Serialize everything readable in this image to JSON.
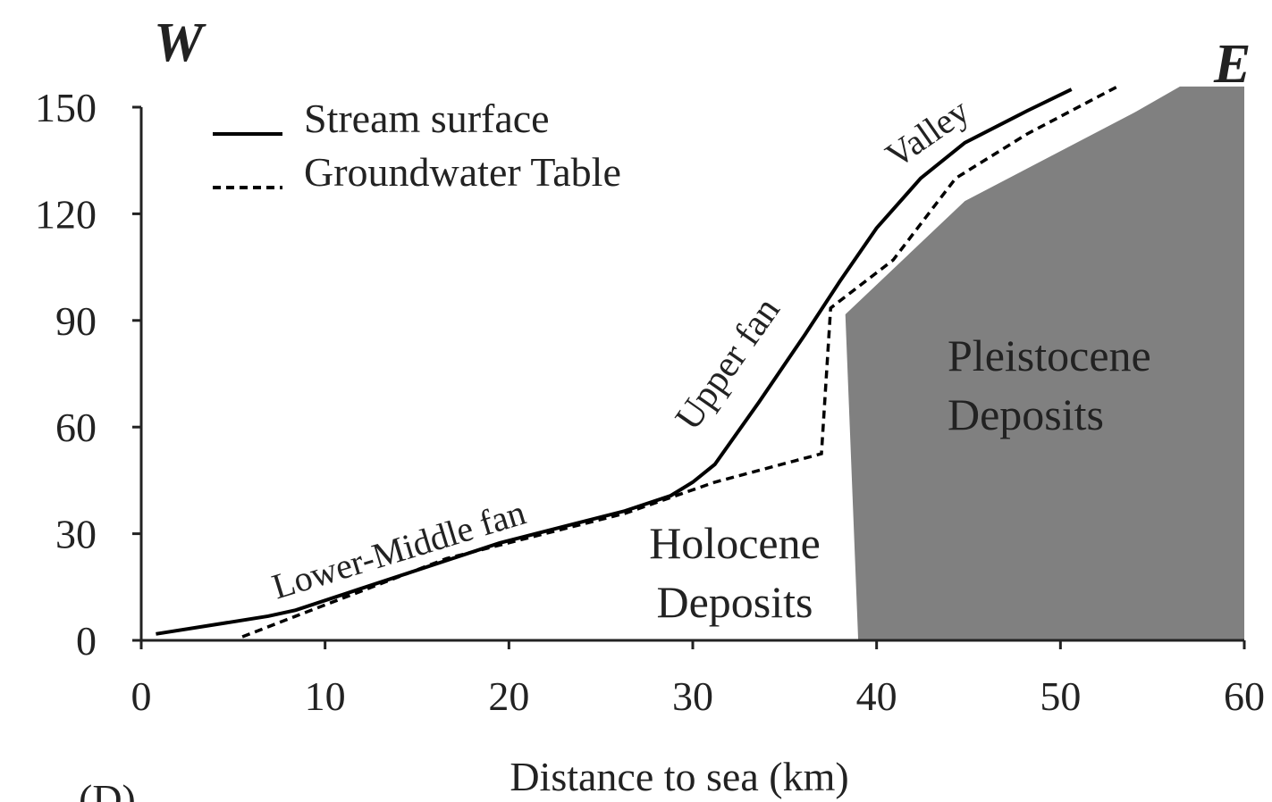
{
  "chart_data": {
    "type": "line",
    "corner_left": "W",
    "corner_right": "E",
    "panel_label": "(D)",
    "xlabel": "Distance to sea (km)",
    "xlim": [
      0,
      60
    ],
    "xticks": [
      0,
      10,
      20,
      30,
      40,
      50,
      60
    ],
    "ylim": [
      0,
      150
    ],
    "yticks": [
      0,
      30,
      60,
      90,
      120,
      150
    ],
    "legend": "top-left",
    "series": [
      {
        "name": "Stream surface",
        "color": "#000000",
        "style": "solid",
        "x": [
          0.8,
          6.9,
          8.4,
          11.8,
          19.5,
          26.3,
          28.8,
          30,
          31.2,
          33.6,
          36.1,
          38,
          40,
          42.4,
          44.8,
          48.2,
          50.6
        ],
        "values": [
          1.8,
          6.8,
          8.5,
          14.3,
          27.4,
          36.4,
          40.7,
          44.5,
          49.5,
          67,
          86,
          101,
          116,
          130,
          140,
          149,
          155
        ]
      },
      {
        "name": "Groundwater Table",
        "color": "#000000",
        "style": "dashed",
        "x": [
          5.5,
          8.4,
          16.6,
          26.3,
          31.2,
          37,
          37.5,
          40.9,
          44.3,
          48.2,
          53.1
        ],
        "values": [
          1,
          6.8,
          23,
          35.7,
          44.5,
          52.5,
          93.5,
          107,
          130,
          142.5,
          155.8
        ]
      }
    ],
    "region": {
      "color": "#808080",
      "x": [
        38.3,
        39,
        60,
        60,
        56.5,
        54.1,
        44.8
      ],
      "values": [
        91.7,
        0,
        0,
        155.8,
        155.8,
        148.7,
        123.6
      ]
    },
    "annotations": [
      {
        "lines": [
          "Lower-Middle fan"
        ]
      },
      {
        "lines": [
          "Upper fan"
        ]
      },
      {
        "lines": [
          "Valley"
        ]
      },
      {
        "lines": [
          "Holocene",
          "Deposits"
        ]
      },
      {
        "lines": [
          "Pleistocene",
          "Deposits"
        ]
      }
    ]
  }
}
